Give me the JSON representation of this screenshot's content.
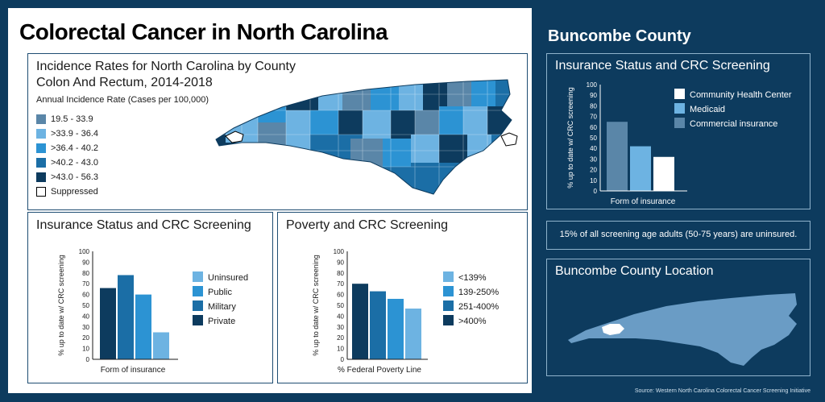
{
  "main_title": "Colorectal Cancer in North Carolina",
  "map_panel": {
    "title_line1": "Incidence Rates for North Carolina by County",
    "title_line2": "Colon And Rectum, 2014-2018",
    "subtitle": "Annual Incidence Rate (Cases per 100,000)",
    "legend": [
      {
        "label": "19.5 - 33.9",
        "color": "#5a86a8"
      },
      {
        "label": ">33.9 - 36.4",
        "color": "#6db3e2"
      },
      {
        "label": ">36.4 - 40.2",
        "color": "#2c93d3"
      },
      {
        "label": ">40.2 - 43.0",
        "color": "#1b6ea6"
      },
      {
        "label": ">43.0 - 56.3",
        "color": "#0d3b5e"
      },
      {
        "label": "Suppressed",
        "color": "#ffffff"
      }
    ]
  },
  "right_title": "Buncombe County",
  "buncombe_note": "15% of all screening age adults (50-75 years) are uninsured.",
  "location_panel": {
    "title": "Buncombe County Location"
  },
  "source": "Source: Western North Carolina Colorectal Cancer Screening Initiative",
  "chart_data": [
    {
      "id": "insurance",
      "type": "bar",
      "title": "Insurance Status and CRC Screening",
      "xlabel": "Form of insurance",
      "ylabel": "% up to date w/ CRC screening",
      "ylim": [
        0,
        100
      ],
      "yticks": [
        0,
        10,
        20,
        30,
        40,
        50,
        60,
        70,
        80,
        90,
        100
      ],
      "categories": [
        "Uninsured",
        "Public",
        "Military",
        "Private"
      ],
      "bar_order": [
        "Private",
        "Military",
        "Public",
        "Uninsured"
      ],
      "values": {
        "Private": 66,
        "Military": 78,
        "Public": 60,
        "Uninsured": 25
      },
      "colors": {
        "Uninsured": "#6db3e2",
        "Public": "#2c93d3",
        "Military": "#1b6ea6",
        "Private": "#0d3b5e"
      }
    },
    {
      "id": "poverty",
      "type": "bar",
      "title": "Poverty and CRC Screening",
      "xlabel": "% Federal Poverty Line",
      "ylabel": "% up to date w/ CRC screening",
      "ylim": [
        0,
        100
      ],
      "yticks": [
        0,
        10,
        20,
        30,
        40,
        50,
        60,
        70,
        80,
        90,
        100
      ],
      "categories": [
        "<139%",
        "139-250%",
        "251-400%",
        ">400%"
      ],
      "bar_order": [
        ">400%",
        "251-400%",
        "139-250%",
        "<139%"
      ],
      "values": {
        ">400%": 70,
        "251-400%": 63,
        "139-250%": 56,
        "<139%": 47
      },
      "colors": {
        "<139%": "#6db3e2",
        "139-250%": "#2c93d3",
        "251-400%": "#1b6ea6",
        ">400%": "#0d3b5e"
      }
    },
    {
      "id": "buncombe",
      "type": "bar",
      "title": "Insurance Status and CRC Screening",
      "xlabel": "Form of insurance",
      "ylabel": "% up to date w/ CRC screening",
      "ylim": [
        0,
        100
      ],
      "yticks": [
        0,
        10,
        20,
        30,
        40,
        50,
        60,
        70,
        80,
        90,
        100
      ],
      "categories": [
        "Community Health Center",
        "Medicaid",
        "Commercial insurance"
      ],
      "bar_order": [
        "Commercial insurance",
        "Medicaid",
        "Community Health Center"
      ],
      "values": {
        "Commercial insurance": 65,
        "Medicaid": 42,
        "Community Health Center": 32
      },
      "colors": {
        "Community Health Center": "#ffffff",
        "Medicaid": "#6db3e2",
        "Commercial insurance": "#5a86a8"
      }
    }
  ]
}
